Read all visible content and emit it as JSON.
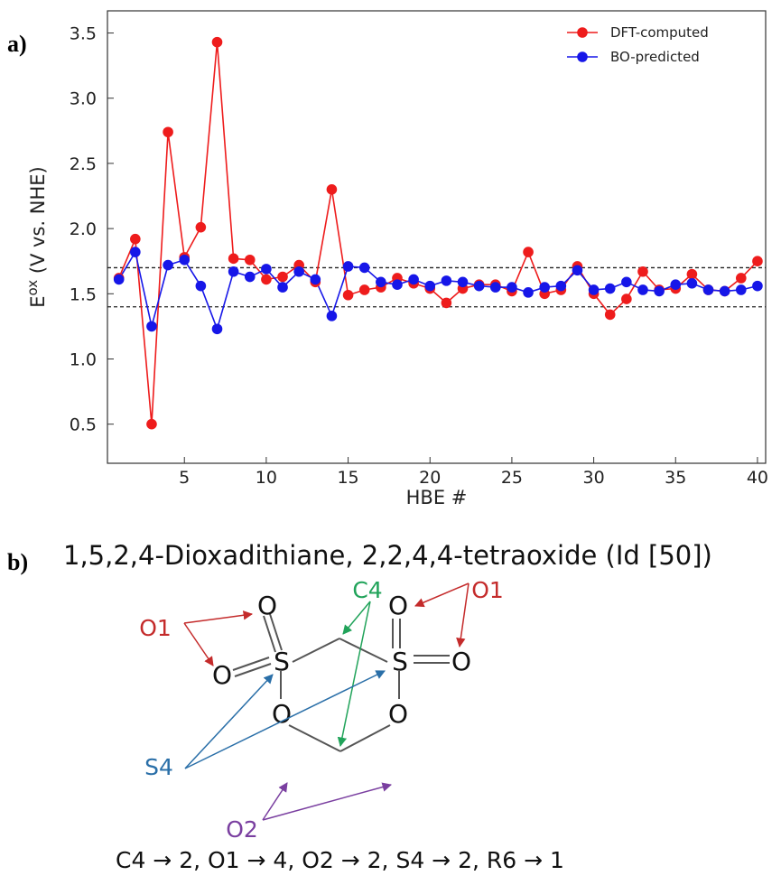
{
  "panel_a_label": "a)",
  "panel_b_label": "b)",
  "chart_data": {
    "type": "line",
    "xlabel": "HBE #",
    "ylabel_main": "E",
    "ylabel_sup": "ox",
    "ylabel_rest": " (V vs. NHE)",
    "xlim": [
      0.3,
      40.5
    ],
    "ylim": [
      0.2,
      3.67
    ],
    "xticks": [
      5,
      10,
      15,
      20,
      25,
      30,
      35,
      40
    ],
    "yticks": [
      0.5,
      1.0,
      1.5,
      2.0,
      2.5,
      3.0,
      3.5
    ],
    "ytick_labels": [
      "0.5",
      "1.0",
      "1.5",
      "2.0",
      "2.5",
      "3.0",
      "3.5"
    ],
    "x": [
      1,
      2,
      3,
      4,
      5,
      6,
      7,
      8,
      9,
      10,
      11,
      12,
      13,
      14,
      15,
      16,
      17,
      18,
      19,
      20,
      21,
      22,
      23,
      24,
      25,
      26,
      27,
      28,
      29,
      30,
      31,
      32,
      33,
      34,
      35,
      36,
      37,
      38,
      39,
      40
    ],
    "series": [
      {
        "name": "DFT-computed",
        "color": "#ee1c1c",
        "values": [
          1.62,
          1.92,
          0.5,
          2.74,
          1.78,
          2.01,
          3.43,
          1.77,
          1.76,
          1.61,
          1.63,
          1.72,
          1.59,
          2.3,
          1.49,
          1.53,
          1.55,
          1.62,
          1.58,
          1.54,
          1.43,
          1.54,
          1.57,
          1.57,
          1.52,
          1.82,
          1.5,
          1.53,
          1.71,
          1.5,
          1.34,
          1.46,
          1.67,
          1.53,
          1.54,
          1.65,
          1.53,
          1.52,
          1.62,
          1.75
        ]
      },
      {
        "name": "BO-predicted",
        "color": "#1616e8",
        "values": [
          1.61,
          1.82,
          1.25,
          1.72,
          1.76,
          1.56,
          1.23,
          1.67,
          1.63,
          1.69,
          1.55,
          1.67,
          1.61,
          1.33,
          1.71,
          1.7,
          1.59,
          1.57,
          1.61,
          1.56,
          1.6,
          1.59,
          1.56,
          1.55,
          1.55,
          1.51,
          1.55,
          1.56,
          1.68,
          1.53,
          1.54,
          1.59,
          1.53,
          1.52,
          1.57,
          1.58,
          1.53,
          1.52,
          1.53,
          1.56
        ]
      }
    ],
    "reference_lines": [
      1.7,
      1.4
    ],
    "legend_position": "top-right",
    "grid": false
  },
  "molecule": {
    "title": "1,5,2,4-Dioxadithiane, 2,2,4,4-tetraoxide (Id [50])",
    "atoms": {
      "oxygen": "O",
      "sulfur": "S"
    },
    "labels": {
      "c4": "C4",
      "o1_left": "O1",
      "o1_right": "O1",
      "s4": "S4",
      "o2": "O2"
    },
    "colors": {
      "c4": "#21a35a",
      "o1": "#c42b2b",
      "s4": "#2a6fa8",
      "o2": "#7a3fa0"
    },
    "summary": "C4 → 2, O1 → 4, O2 → 2, S4  → 2, R6 → 1"
  }
}
